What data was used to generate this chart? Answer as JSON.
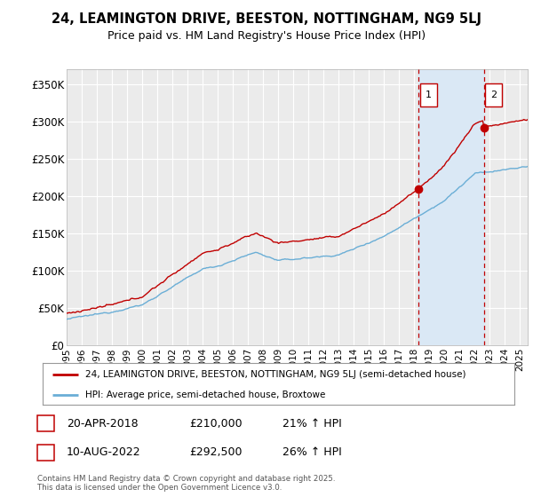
{
  "title": "24, LEAMINGTON DRIVE, BEESTON, NOTTINGHAM, NG9 5LJ",
  "subtitle": "Price paid vs. HM Land Registry's House Price Index (HPI)",
  "ylabel_ticks": [
    "£0",
    "£50K",
    "£100K",
    "£150K",
    "£200K",
    "£250K",
    "£300K",
    "£350K"
  ],
  "ytick_values": [
    0,
    50000,
    100000,
    150000,
    200000,
    250000,
    300000,
    350000
  ],
  "ylim": [
    0,
    370000
  ],
  "xlim_start": 1995,
  "xlim_end": 2025.5,
  "hpi_color": "#6aaed6",
  "price_color": "#c00000",
  "marker1_date": 2018.3,
  "marker1_price": 210000,
  "marker1_label": "20-APR-2018",
  "marker1_amount": "£210,000",
  "marker1_pct": "21% ↑ HPI",
  "marker2_date": 2022.6,
  "marker2_price": 292500,
  "marker2_label": "10-AUG-2022",
  "marker2_amount": "£292,500",
  "marker2_pct": "26% ↑ HPI",
  "legend_label1": "24, LEAMINGTON DRIVE, BEESTON, NOTTINGHAM, NG9 5LJ (semi-detached house)",
  "legend_label2": "HPI: Average price, semi-detached house, Broxtowe",
  "footnote": "Contains HM Land Registry data © Crown copyright and database right 2025.\nThis data is licensed under the Open Government Licence v3.0.",
  "background_color": "#ffffff",
  "plot_bg_color": "#ebebeb",
  "grid_color": "#ffffff",
  "shaded_region_color": "#dae8f5"
}
